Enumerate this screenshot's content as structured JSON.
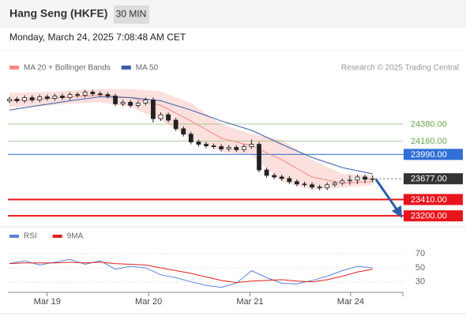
{
  "header": {
    "title": "Hang Seng (HKFE)",
    "interval": "30 MIN",
    "datetime": "Monday, March 24, 2025 7:08:48 AM CET"
  },
  "chart_data": [
    {
      "type": "candlestick",
      "source": "Research © 2025 Trading Central",
      "x": [
        0,
        1,
        2,
        3,
        4,
        5,
        6,
        7,
        8,
        9,
        10,
        11,
        12,
        13,
        14,
        15,
        16,
        17,
        18,
        19,
        20,
        21,
        22,
        23,
        24,
        25,
        26,
        27,
        28,
        29,
        30,
        31,
        32,
        33,
        34,
        35,
        36,
        37,
        38,
        39,
        40,
        41,
        42,
        43,
        44,
        45,
        46,
        47,
        48
      ],
      "open": [
        24680,
        24700,
        24680,
        24720,
        24690,
        24730,
        24710,
        24740,
        24720,
        24760,
        24750,
        24790,
        24770,
        24760,
        24740,
        24640,
        24660,
        24620,
        24650,
        24690,
        24450,
        24500,
        24430,
        24320,
        24250,
        24150,
        24120,
        24100,
        24090,
        24060,
        24080,
        24050,
        24090,
        24120,
        23790,
        23720,
        23700,
        23680,
        23640,
        23610,
        23600,
        23570,
        23560,
        23600,
        23620,
        23650,
        23660,
        23700,
        23670
      ],
      "high": [
        24730,
        24730,
        24750,
        24750,
        24760,
        24760,
        24770,
        24770,
        24790,
        24790,
        24820,
        24820,
        24800,
        24790,
        24770,
        24690,
        24690,
        24680,
        24720,
        24720,
        24530,
        24530,
        24460,
        24350,
        24280,
        24180,
        24150,
        24130,
        24120,
        24110,
        24110,
        24120,
        24180,
        24150,
        23820,
        23750,
        23730,
        23710,
        23670,
        23640,
        23630,
        23600,
        23630,
        23650,
        23680,
        23720,
        23730,
        23730,
        23720
      ],
      "low": [
        24650,
        24650,
        24650,
        24660,
        24660,
        24680,
        24680,
        24690,
        24690,
        24720,
        24720,
        24740,
        24730,
        24710,
        24610,
        24610,
        24590,
        24590,
        24620,
        24400,
        24420,
        24400,
        24290,
        24220,
        24120,
        24090,
        24070,
        24060,
        24030,
        24030,
        24020,
        24020,
        24060,
        23760,
        23690,
        23670,
        23650,
        23610,
        23580,
        23570,
        23540,
        23530,
        23530,
        23570,
        23590,
        23600,
        23610,
        23620,
        23630
      ],
      "close": [
        24700,
        24680,
        24720,
        24690,
        24730,
        24710,
        24740,
        24720,
        24760,
        24750,
        24790,
        24770,
        24760,
        24740,
        24640,
        24660,
        24620,
        24650,
        24690,
        24450,
        24500,
        24430,
        24320,
        24250,
        24150,
        24120,
        24100,
        24090,
        24060,
        24080,
        24050,
        24090,
        24120,
        23790,
        23720,
        23700,
        23680,
        23640,
        23610,
        23600,
        23570,
        23560,
        23600,
        23620,
        23650,
        23660,
        23700,
        23670,
        23677
      ],
      "up_color": "#ffffff",
      "down_color": "#222222",
      "series": [
        {
          "name": "MA 20 + Bollinger Bands",
          "color": "#f28b82",
          "band_color": "#fbd3d0",
          "x": [
            0,
            4,
            8,
            12,
            16,
            20,
            24,
            28,
            32,
            36,
            40,
            44,
            48
          ],
          "values": [
            24680,
            24700,
            24730,
            24750,
            24720,
            24620,
            24420,
            24200,
            24100,
            23920,
            23700,
            23620,
            23640
          ],
          "upper": [
            24780,
            24790,
            24810,
            24830,
            24830,
            24800,
            24650,
            24380,
            24250,
            24180,
            23920,
            23740,
            23720
          ],
          "lower": [
            24600,
            24610,
            24640,
            24660,
            24600,
            24430,
            24200,
            24020,
            23980,
            23640,
            23540,
            23560,
            23600
          ]
        },
        {
          "name": "MA 50",
          "color": "#3a5ea8",
          "x": [
            0,
            4,
            8,
            12,
            16,
            20,
            24,
            28,
            32,
            36,
            40,
            44,
            48
          ],
          "values": [
            24560,
            24620,
            24680,
            24730,
            24720,
            24680,
            24560,
            24420,
            24300,
            24120,
            23950,
            23820,
            23740
          ]
        }
      ],
      "levels": [
        {
          "value": 24380,
          "label": "24380.00",
          "color": "#6aa84f",
          "boxed": false,
          "width": 1
        },
        {
          "value": 24160,
          "label": "24160.00",
          "color": "#6aa84f",
          "boxed": false,
          "width": 1
        },
        {
          "value": 23990,
          "label": "23990.00",
          "color": "#2f6fd6",
          "boxed": true,
          "width": 1
        },
        {
          "value": 23677,
          "label": "23677.00",
          "color": "#333333",
          "boxed": true,
          "width": 1,
          "dashed": true
        },
        {
          "value": 23410,
          "label": "23410.00",
          "color": "#e8141c",
          "boxed": true,
          "width": 2
        },
        {
          "value": 23200,
          "label": "23200.00",
          "color": "#e8141c",
          "boxed": true,
          "width": 2
        }
      ],
      "xlim": [
        -0.2,
        52
      ],
      "ylim": [
        23080,
        25010
      ]
    },
    {
      "type": "line",
      "series": [
        {
          "name": "RSI",
          "color": "#5b84d6",
          "x": [
            0,
            2,
            4,
            6,
            8,
            10,
            12,
            14,
            16,
            18,
            20,
            22,
            24,
            26,
            28,
            30,
            32,
            34,
            36,
            38,
            40,
            42,
            44,
            46,
            48
          ],
          "values": [
            56,
            60,
            54,
            58,
            62,
            55,
            60,
            48,
            52,
            50,
            40,
            36,
            30,
            25,
            22,
            28,
            46,
            36,
            28,
            27,
            32,
            38,
            46,
            52,
            50
          ]
        },
        {
          "name": "9MA",
          "color": "#e02020",
          "x": [
            0,
            2,
            4,
            6,
            8,
            10,
            12,
            14,
            16,
            18,
            20,
            22,
            24,
            26,
            28,
            30,
            32,
            34,
            36,
            38,
            40,
            42,
            44,
            46,
            48
          ],
          "values": [
            56,
            57,
            57,
            57,
            58,
            57,
            58,
            56,
            55,
            54,
            50,
            46,
            42,
            37,
            32,
            29,
            31,
            32,
            33,
            31,
            30,
            33,
            38,
            44,
            48
          ]
        }
      ],
      "xlim": [
        -0.2,
        52
      ],
      "ylim": [
        15,
        77
      ],
      "yticks": [
        70,
        50,
        30
      ],
      "xticks": [
        {
          "value": 5,
          "label": "Mar 19"
        },
        {
          "value": 18.4,
          "label": "Mar 20"
        },
        {
          "value": 31.8,
          "label": "Mar 21"
        },
        {
          "value": 45.1,
          "label": "Mar 24"
        }
      ]
    }
  ]
}
